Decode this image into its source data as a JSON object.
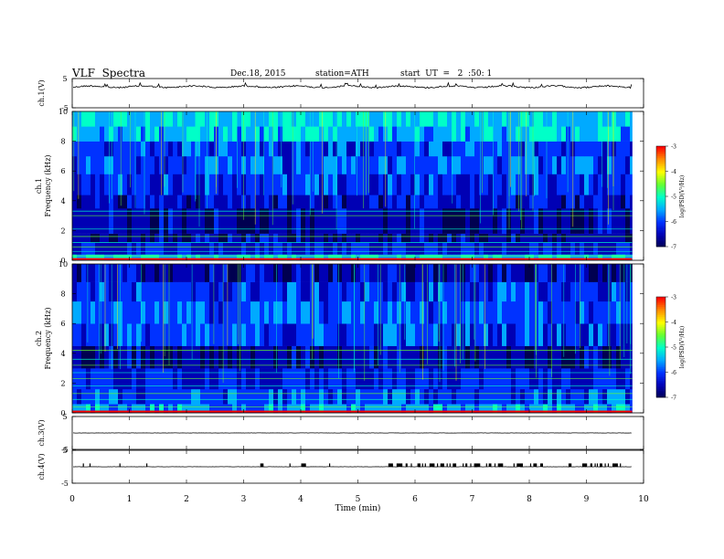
{
  "header": {
    "title": "VLF  Spectra",
    "date": "Dec.18, 2015",
    "station": "station=ATH",
    "start": "start  UT  =   2  :50: 1"
  },
  "chart_data": [
    {
      "type": "line",
      "panel": "ch1-waveform",
      "ylabel": "ch.1(V)",
      "ylim": [
        -5,
        5
      ],
      "yticks": [
        "5",
        "-5"
      ],
      "baseline_value": 2.2,
      "color": "#000000"
    },
    {
      "type": "heatmap",
      "panel": "ch1-spectrogram",
      "ylabel": "ch.1\nFrequency (kHz)",
      "ylim": [
        0,
        10
      ],
      "yticks": [
        "0",
        "2",
        "4",
        "6",
        "8",
        "10"
      ],
      "bands": [
        {
          "from": 0.0,
          "to": 0.4,
          "level": -5.2
        },
        {
          "from": 0.4,
          "to": 1.2,
          "level": -6.3
        },
        {
          "from": 1.2,
          "to": 1.8,
          "level": -6.6
        },
        {
          "from": 1.8,
          "to": 3.5,
          "level": -6.6
        },
        {
          "from": 3.5,
          "to": 4.4,
          "level": -6.4
        },
        {
          "from": 4.4,
          "to": 5.8,
          "level": -6.1
        },
        {
          "from": 5.8,
          "to": 7.0,
          "level": -5.9
        },
        {
          "from": 7.0,
          "to": 8.0,
          "level": -6.0
        },
        {
          "from": 8.0,
          "to": 9.0,
          "level": -5.4
        },
        {
          "from": 9.0,
          "to": 10.0,
          "level": -5.3
        }
      ],
      "lines_khz": [
        0.3,
        0.6,
        0.9,
        1.2,
        1.6,
        2.1,
        3.0,
        3.3
      ],
      "colorbar": {
        "label": "log(PSD(V²/Hz)",
        "ticks": [
          "-3",
          "-4",
          "-5",
          "-6",
          "-7"
        ],
        "range": [
          -7,
          -3
        ]
      }
    },
    {
      "type": "heatmap",
      "panel": "ch2-spectrogram",
      "ylabel": "ch.2\nFrequency (kHz)",
      "ylim": [
        0,
        10
      ],
      "yticks": [
        "0",
        "2",
        "4",
        "6",
        "8",
        "10"
      ],
      "bands": [
        {
          "from": 0.0,
          "to": 0.6,
          "level": -5.6
        },
        {
          "from": 0.6,
          "to": 1.6,
          "level": -6.0
        },
        {
          "from": 1.6,
          "to": 3.0,
          "level": -6.3
        },
        {
          "from": 3.0,
          "to": 4.5,
          "level": -6.6
        },
        {
          "from": 4.5,
          "to": 6.0,
          "level": -6.0
        },
        {
          "from": 6.0,
          "to": 7.5,
          "level": -5.9
        },
        {
          "from": 7.5,
          "to": 8.8,
          "level": -6.1
        },
        {
          "from": 8.8,
          "to": 10.0,
          "level": -6.5
        }
      ],
      "lines_khz": [
        0.4,
        0.9,
        1.3,
        1.8,
        2.3,
        2.7,
        3.2,
        3.6,
        4.2
      ],
      "colorbar": {
        "label": "log(PSD(V²/Hz)",
        "ticks": [
          "-3",
          "-4",
          "-5",
          "-6",
          "-7"
        ],
        "range": [
          -7,
          -3
        ]
      }
    },
    {
      "type": "line",
      "panel": "ch3-waveform",
      "ylabel": "ch.3(V)",
      "ylim": [
        -5,
        5
      ],
      "yticks": [
        "5",
        "-5"
      ],
      "baseline_value": 0.0,
      "color": "#000000"
    },
    {
      "type": "line",
      "panel": "ch4-waveform",
      "ylabel": "ch.4(V)",
      "ylim": [
        -5,
        5
      ],
      "yticks": [
        "5",
        "-5"
      ],
      "baseline_value": 0.0,
      "pulse_value": 1.0,
      "color": "#000000"
    }
  ],
  "xaxis": {
    "label": "Time  (min)",
    "xlim": [
      0,
      10
    ],
    "data_end": 9.8,
    "ticks": [
      "0",
      "1",
      "2",
      "3",
      "4",
      "5",
      "6",
      "7",
      "8",
      "9",
      "10"
    ]
  },
  "colormap": [
    "#000050",
    "#0000b4",
    "#0032ff",
    "#00aaff",
    "#00ffc8",
    "#64ff32",
    "#ffff00",
    "#ff8c00",
    "#ff0000",
    "#ffffff"
  ]
}
